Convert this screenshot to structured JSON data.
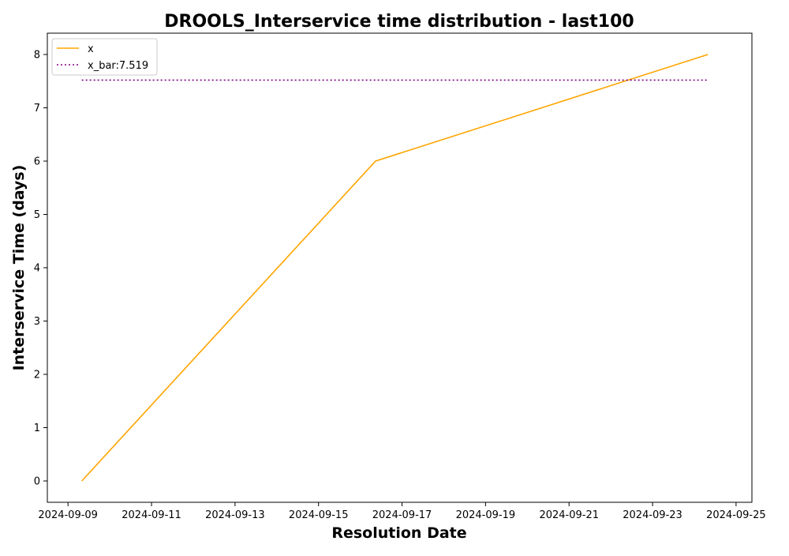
{
  "chart_data": {
    "type": "line",
    "title": "DROOLS_Interservice time distribution - last100",
    "xlabel": "Resolution Date",
    "ylabel": "Interservice Time (days)",
    "x_ticks": [
      "2024-09-09",
      "2024-09-11",
      "2024-09-13",
      "2024-09-15",
      "2024-09-17",
      "2024-09-19",
      "2024-09-21",
      "2024-09-23",
      "2024-09-25"
    ],
    "y_ticks": [
      "0",
      "1",
      "2",
      "3",
      "4",
      "5",
      "6",
      "7",
      "8"
    ],
    "ylim": [
      -0.4,
      8.4
    ],
    "xlim": [
      "2024-09-08T12:07",
      "2024-09-25T09:07"
    ],
    "series": [
      {
        "name": "x",
        "color": "#ffa500",
        "style": "solid",
        "x": [
          "2024-09-09T07:55",
          "2024-09-16T08:45",
          "2024-09-24T07:50"
        ],
        "values": [
          0,
          6,
          8
        ]
      },
      {
        "name": "x_bar:7.519",
        "color": "#800080",
        "style": "dotted",
        "x": [
          "2024-09-09T07:55",
          "2024-09-24T07:50"
        ],
        "values": [
          7.519,
          7.519
        ]
      }
    ],
    "legend": {
      "placement": "top-left"
    },
    "grid": false
  }
}
